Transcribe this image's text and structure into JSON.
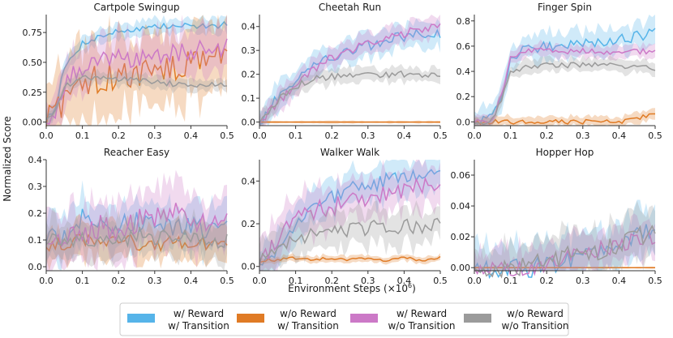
{
  "figure": {
    "ylabel": "Normalized Score",
    "xlabel": "Environment Steps",
    "xlabel_unit": "(×10",
    "xlabel_exp": "6",
    "xlabel_close": ")"
  },
  "colors": {
    "reward_transition": "#56b4e9",
    "noreward_transition": "#e07b25",
    "reward_notransition": "#cc79c7",
    "noreward_notransition": "#9b9b9b"
  },
  "legend": [
    {
      "line1": "w/ Reward",
      "line2": "w/ Transition",
      "color": "#56b4e9"
    },
    {
      "line1": "w/o Reward",
      "line2": "w/ Transition",
      "color": "#e07b25"
    },
    {
      "line1": "w/ Reward",
      "line2": "w/o Transition",
      "color": "#cc79c7"
    },
    {
      "line1": "w/o Reward",
      "line2": "w/o Transition",
      "color": "#9b9b9b"
    }
  ],
  "chart_data": [
    {
      "type": "line",
      "title": "Cartpole Swingup",
      "xlim": [
        0,
        0.5
      ],
      "ylim": [
        -0.03,
        0.9
      ],
      "xticks": [
        "0.0",
        "0.1",
        "0.2",
        "0.3",
        "0.4",
        "0.5"
      ],
      "yticks": [
        "0.00",
        "0.25",
        "0.50",
        "0.75"
      ],
      "ytick_values": [
        0,
        0.25,
        0.5,
        0.75
      ],
      "x": [
        0,
        0.025,
        0.05,
        0.1,
        0.15,
        0.2,
        0.25,
        0.3,
        0.35,
        0.4,
        0.45,
        0.5
      ],
      "series": [
        {
          "name": "w/ Reward w/ Transition",
          "values": [
            0.03,
            0.12,
            0.45,
            0.66,
            0.72,
            0.76,
            0.78,
            0.8,
            0.8,
            0.81,
            0.8,
            0.82
          ],
          "band": 0.06
        },
        {
          "name": "w/o Reward w/ Transition",
          "values": [
            0.03,
            0.08,
            0.2,
            0.28,
            0.37,
            0.41,
            0.4,
            0.42,
            0.46,
            0.5,
            0.55,
            0.56
          ],
          "band": 0.3
        },
        {
          "name": "w/ Reward w/o Transition",
          "values": [
            0.03,
            0.1,
            0.33,
            0.45,
            0.5,
            0.55,
            0.53,
            0.56,
            0.58,
            0.6,
            0.62,
            0.62
          ],
          "band": 0.18
        },
        {
          "name": "w/o Reward w/o Transition",
          "values": [
            0.03,
            0.1,
            0.3,
            0.37,
            0.37,
            0.36,
            0.35,
            0.33,
            0.32,
            0.31,
            0.31,
            0.31
          ],
          "band": 0.05
        }
      ]
    },
    {
      "type": "line",
      "title": "Cheetah Run",
      "xlim": [
        0,
        0.5
      ],
      "ylim": [
        -0.015,
        0.45
      ],
      "xticks": [
        "0.0",
        "0.1",
        "0.2",
        "0.3",
        "0.4",
        "0.5"
      ],
      "yticks": [
        "0.0",
        "0.1",
        "0.2",
        "0.3",
        "0.4"
      ],
      "ytick_values": [
        0,
        0.1,
        0.2,
        0.3,
        0.4
      ],
      "x": [
        0,
        0.025,
        0.05,
        0.1,
        0.15,
        0.2,
        0.25,
        0.3,
        0.35,
        0.4,
        0.45,
        0.5
      ],
      "series": [
        {
          "name": "w/ Reward w/ Transition",
          "values": [
            0.0,
            0.05,
            0.1,
            0.18,
            0.24,
            0.27,
            0.3,
            0.32,
            0.34,
            0.36,
            0.37,
            0.37
          ],
          "band": 0.05
        },
        {
          "name": "w/o Reward w/ Transition",
          "values": [
            0.0,
            0.0,
            0.0,
            0.0,
            0.0,
            0.0,
            0.0,
            0.0,
            0.0,
            0.0,
            0.0,
            0.0
          ],
          "band": 0.005
        },
        {
          "name": "w/ Reward w/o Transition",
          "values": [
            0.0,
            0.04,
            0.08,
            0.15,
            0.22,
            0.27,
            0.3,
            0.33,
            0.35,
            0.37,
            0.39,
            0.4
          ],
          "band": 0.04
        },
        {
          "name": "w/o Reward w/o Transition",
          "values": [
            0.0,
            0.04,
            0.09,
            0.15,
            0.18,
            0.19,
            0.2,
            0.2,
            0.2,
            0.2,
            0.2,
            0.2
          ],
          "band": 0.03
        }
      ]
    },
    {
      "type": "line",
      "title": "Finger Spin",
      "xlim": [
        0,
        0.5
      ],
      "ylim": [
        -0.03,
        0.85
      ],
      "xticks": [
        "0.0",
        "0.1",
        "0.2",
        "0.3",
        "0.4",
        "0.5"
      ],
      "yticks": [
        "0.0",
        "0.2",
        "0.4",
        "0.6",
        "0.8"
      ],
      "ytick_values": [
        0,
        0.2,
        0.4,
        0.6,
        0.8
      ],
      "x": [
        0,
        0.025,
        0.05,
        0.075,
        0.1,
        0.15,
        0.2,
        0.25,
        0.3,
        0.35,
        0.4,
        0.45,
        0.5
      ],
      "series": [
        {
          "name": "w/ Reward w/ Transition",
          "values": [
            0.0,
            0.0,
            0.02,
            0.2,
            0.5,
            0.58,
            0.6,
            0.62,
            0.63,
            0.64,
            0.66,
            0.68,
            0.7
          ],
          "band": 0.1
        },
        {
          "name": "w/o Reward w/ Transition",
          "values": [
            0.0,
            0.0,
            0.0,
            0.0,
            0.0,
            0.0,
            0.0,
            0.0,
            0.0,
            0.0,
            0.0,
            0.02,
            0.07
          ],
          "band": 0.04
        },
        {
          "name": "w/ Reward w/o Transition",
          "values": [
            0.0,
            0.0,
            0.02,
            0.2,
            0.5,
            0.56,
            0.57,
            0.56,
            0.56,
            0.55,
            0.55,
            0.56,
            0.56
          ],
          "band": 0.05
        },
        {
          "name": "w/o Reward w/o Transition",
          "values": [
            0.0,
            0.0,
            0.02,
            0.18,
            0.4,
            0.44,
            0.45,
            0.45,
            0.45,
            0.45,
            0.44,
            0.43,
            0.43
          ],
          "band": 0.05
        }
      ]
    },
    {
      "type": "line",
      "title": "Reacher Easy",
      "xlim": [
        0,
        0.5
      ],
      "ylim": [
        -0.015,
        0.4
      ],
      "xticks": [
        "0.0",
        "0.1",
        "0.2",
        "0.3",
        "0.4",
        "0.5"
      ],
      "yticks": [
        "0.0",
        "0.1",
        "0.2",
        "0.3",
        "0.4"
      ],
      "ytick_values": [
        0,
        0.1,
        0.2,
        0.3,
        0.4
      ],
      "x": [
        0,
        0.05,
        0.1,
        0.15,
        0.2,
        0.25,
        0.3,
        0.35,
        0.4,
        0.45,
        0.5
      ],
      "series": [
        {
          "name": "w/ Reward w/ Transition",
          "values": [
            0.1,
            0.12,
            0.18,
            0.15,
            0.16,
            0.17,
            0.16,
            0.14,
            0.15,
            0.13,
            0.15
          ],
          "band": 0.08
        },
        {
          "name": "w/o Reward w/ Transition",
          "values": [
            0.08,
            0.09,
            0.1,
            0.09,
            0.1,
            0.09,
            0.08,
            0.1,
            0.09,
            0.08,
            0.1
          ],
          "band": 0.06
        },
        {
          "name": "w/ Reward w/o Transition",
          "values": [
            0.1,
            0.11,
            0.12,
            0.15,
            0.14,
            0.17,
            0.18,
            0.2,
            0.18,
            0.16,
            0.2
          ],
          "band": 0.1
        },
        {
          "name": "w/o Reward w/o Transition",
          "values": [
            0.09,
            0.1,
            0.1,
            0.11,
            0.1,
            0.12,
            0.11,
            0.1,
            0.11,
            0.1,
            0.1
          ],
          "band": 0.07
        }
      ]
    },
    {
      "type": "line",
      "title": "Walker Walk",
      "xlim": [
        0,
        0.5
      ],
      "ylim": [
        -0.02,
        0.5
      ],
      "xticks": [
        "0.0",
        "0.1",
        "0.2",
        "0.3",
        "0.4",
        "0.5"
      ],
      "yticks": [
        "0.0",
        "0.2",
        "0.4"
      ],
      "ytick_values": [
        0,
        0.2,
        0.4
      ],
      "x": [
        0,
        0.025,
        0.05,
        0.1,
        0.15,
        0.2,
        0.25,
        0.3,
        0.35,
        0.4,
        0.45,
        0.5
      ],
      "series": [
        {
          "name": "w/ Reward w/ Transition",
          "values": [
            0.02,
            0.03,
            0.1,
            0.2,
            0.26,
            0.32,
            0.36,
            0.38,
            0.4,
            0.42,
            0.43,
            0.44
          ],
          "band": 0.08
        },
        {
          "name": "w/o Reward w/ Transition",
          "values": [
            0.02,
            0.03,
            0.03,
            0.04,
            0.03,
            0.04,
            0.03,
            0.04,
            0.03,
            0.04,
            0.03,
            0.04
          ],
          "band": 0.015
        },
        {
          "name": "w/ Reward w/o Transition",
          "values": [
            0.02,
            0.05,
            0.14,
            0.22,
            0.26,
            0.28,
            0.3,
            0.32,
            0.34,
            0.36,
            0.38,
            0.4
          ],
          "band": 0.1
        },
        {
          "name": "w/o Reward w/o Transition",
          "values": [
            0.02,
            0.04,
            0.1,
            0.13,
            0.15,
            0.15,
            0.17,
            0.18,
            0.18,
            0.19,
            0.19,
            0.19
          ],
          "band": 0.08
        }
      ]
    },
    {
      "type": "line",
      "title": "Hopper Hop",
      "xlim": [
        0,
        0.5
      ],
      "ylim": [
        -0.002,
        0.07
      ],
      "xticks": [
        "0.0",
        "0.1",
        "0.2",
        "0.3",
        "0.4",
        "0.5"
      ],
      "yticks": [
        "0.00",
        "0.02",
        "0.04",
        "0.06"
      ],
      "ytick_values": [
        0,
        0.02,
        0.04,
        0.06
      ],
      "x": [
        0,
        0.05,
        0.1,
        0.15,
        0.2,
        0.25,
        0.3,
        0.35,
        0.4,
        0.45,
        0.5
      ],
      "series": [
        {
          "name": "w/ Reward w/ Transition",
          "values": [
            0.0,
            0.0,
            0.0,
            0.0,
            0.002,
            0.004,
            0.006,
            0.01,
            0.015,
            0.02,
            0.025
          ],
          "band": 0.015
        },
        {
          "name": "w/o Reward w/ Transition",
          "values": [
            0.0,
            0.0,
            0.0,
            0.0,
            0.0,
            0.0,
            0.0,
            0.0,
            0.0,
            0.0,
            0.0
          ],
          "band": 0.0005
        },
        {
          "name": "w/ Reward w/o Transition",
          "values": [
            0.0,
            0.0,
            0.0,
            0.0,
            0.003,
            0.006,
            0.01,
            0.012,
            0.014,
            0.018,
            0.02
          ],
          "band": 0.012
        },
        {
          "name": "w/o Reward w/o Transition",
          "values": [
            0.0,
            0.0,
            0.0,
            0.001,
            0.004,
            0.008,
            0.01,
            0.012,
            0.016,
            0.02,
            0.022
          ],
          "band": 0.015
        }
      ]
    }
  ]
}
